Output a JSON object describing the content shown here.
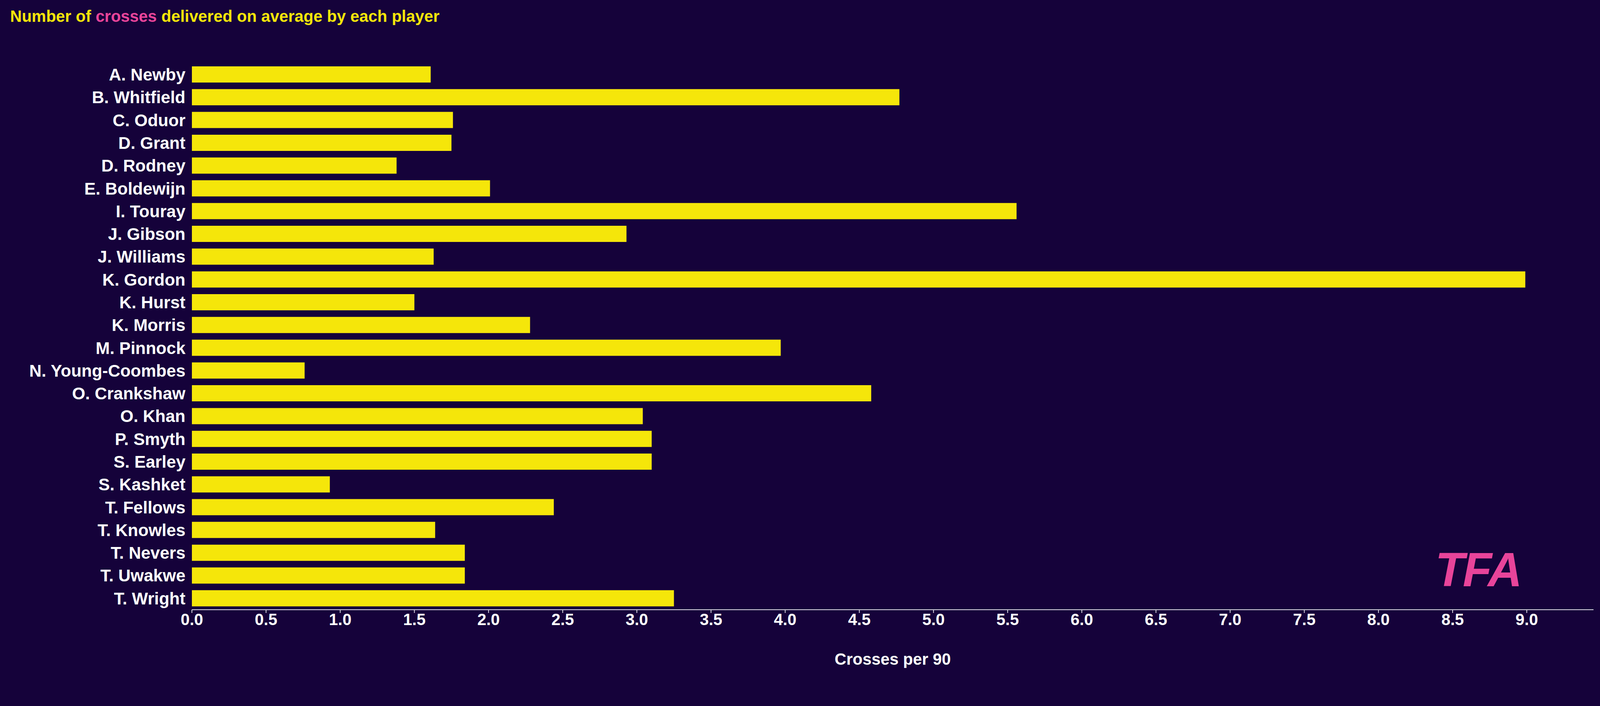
{
  "chart_data": {
    "type": "bar",
    "orientation": "horizontal",
    "title": "Number of crosses delivered on average by each player",
    "x_label": "Crosses per 90",
    "watermark": "TFA",
    "categories": [
      "A. Newby",
      "B. Whitfield",
      "C. Oduor",
      "D. Grant",
      "D. Rodney",
      "E. Boldewijn",
      "I. Touray",
      "J. Gibson",
      "J. Williams",
      "K. Gordon",
      "K. Hurst",
      "K. Morris",
      "M. Pinnock",
      "N. Young-Coombes",
      "O. Crankshaw",
      "O. Khan",
      "P. Smyth",
      "S. Earley",
      "S. Kashket",
      "T. Fellows",
      "T. Knowles",
      "T. Nevers",
      "T. Uwakwe",
      "T. Wright"
    ],
    "values": [
      1.61,
      4.77,
      1.76,
      1.75,
      1.38,
      2.01,
      5.56,
      2.93,
      1.63,
      8.99,
      1.5,
      2.28,
      3.97,
      0.76,
      4.58,
      3.04,
      3.1,
      3.1,
      0.93,
      2.44,
      1.64,
      1.84,
      1.84,
      3.25
    ],
    "color": "#f5e60a",
    "xlim": [
      0,
      9.45
    ],
    "xticks": [
      {
        "value": 0,
        "label": "0.0"
      },
      {
        "value": 0.5,
        "label": "0.5"
      },
      {
        "value": 1,
        "label": "1.0"
      },
      {
        "value": 1.5,
        "label": "1.5"
      },
      {
        "value": 2,
        "label": "2.0"
      },
      {
        "value": 2.5,
        "label": "2.5"
      },
      {
        "value": 3,
        "label": "3.0"
      },
      {
        "value": 3.5,
        "label": "3.5"
      },
      {
        "value": 4,
        "label": "4.0"
      },
      {
        "value": 4.5,
        "label": "4.5"
      },
      {
        "value": 5,
        "label": "5.0"
      },
      {
        "value": 5.5,
        "label": "5.5"
      },
      {
        "value": 6,
        "label": "6.0"
      },
      {
        "value": 6.5,
        "label": "6.5"
      },
      {
        "value": 7,
        "label": "7.0"
      },
      {
        "value": 7.5,
        "label": "7.5"
      },
      {
        "value": 8,
        "label": "8.0"
      },
      {
        "value": 8.5,
        "label": "8.5"
      },
      {
        "value": 9,
        "label": "9.0"
      }
    ],
    "grid": false
  }
}
